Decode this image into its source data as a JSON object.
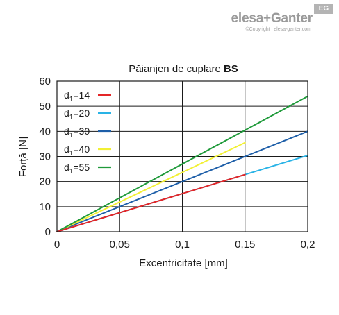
{
  "brand": {
    "name": "elesa+Ganter",
    "badge": "EG",
    "copyright": "©Copyright | elesa-ganter.com"
  },
  "chart_data": {
    "type": "line",
    "title": "Păianjen de cuplare",
    "title_bold": "BS",
    "xlabel": "Excentricitate [mm]",
    "ylabel": "Forță [N]",
    "xlim": [
      0,
      0.2
    ],
    "ylim": [
      0,
      60
    ],
    "x_ticks": [
      0,
      0.05,
      0.1,
      0.15,
      0.2
    ],
    "x_tick_labels": [
      "0",
      "0,05",
      "0,1",
      "0,15",
      "0,2"
    ],
    "y_ticks": [
      0,
      10,
      20,
      30,
      40,
      50,
      60
    ],
    "y_tick_labels": [
      "0",
      "10",
      "20",
      "30",
      "40",
      "50",
      "60"
    ],
    "grid": true,
    "legend_position": "top-left",
    "series": [
      {
        "name_base": "d",
        "name_sub": "1",
        "name_rest": "=14",
        "color": "#e42628",
        "x": [
          0,
          0.15,
          0.2
        ],
        "y": [
          0,
          22.8,
          30.4
        ]
      },
      {
        "name_base": "d",
        "name_sub": "1",
        "name_rest": "=20",
        "color": "#29b3e6",
        "x": [
          0,
          0.15,
          0.2
        ],
        "y": [
          0,
          22.8,
          30.4
        ]
      },
      {
        "name_base": "d",
        "name_sub": "1",
        "name_rest": "=30",
        "color": "#1d5ea8",
        "x": [
          0,
          0.2
        ],
        "y": [
          0,
          40
        ]
      },
      {
        "name_base": "d",
        "name_sub": "1",
        "name_rest": "=40",
        "color": "#f2f034",
        "x": [
          0,
          0.15
        ],
        "y": [
          0,
          35.5
        ]
      },
      {
        "name_base": "d",
        "name_sub": "1",
        "name_rest": "=55",
        "color": "#1f9a3a",
        "x": [
          0,
          0.2
        ],
        "y": [
          0,
          54
        ]
      }
    ],
    "series_segments": [
      {
        "series": 1,
        "from": 0,
        "to": 2
      },
      {
        "series": 0,
        "from": 0,
        "to": 1
      }
    ]
  }
}
